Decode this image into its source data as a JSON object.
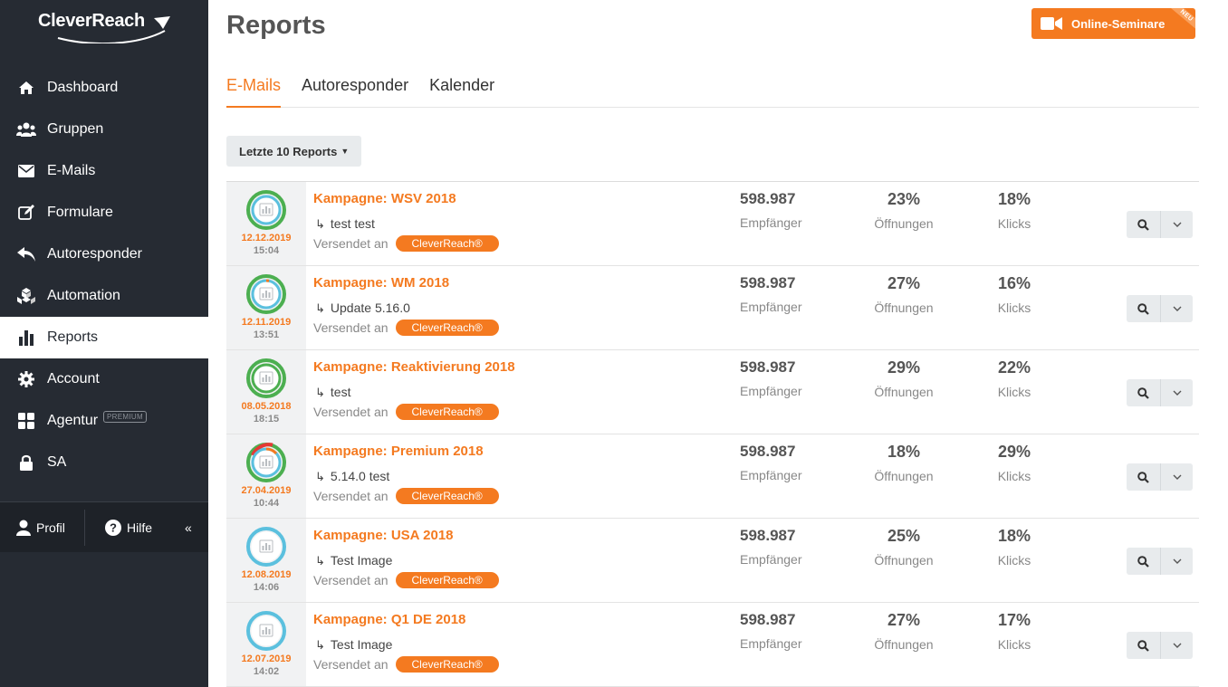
{
  "brand": {
    "name": "CleverReach"
  },
  "sidebar": {
    "items": [
      {
        "label": "Dashboard",
        "icon": "home-icon"
      },
      {
        "label": "Gruppen",
        "icon": "users-icon"
      },
      {
        "label": "E-Mails",
        "icon": "envelope-icon"
      },
      {
        "label": "Formulare",
        "icon": "edit-icon"
      },
      {
        "label": "Autoresponder",
        "icon": "reply-icon"
      },
      {
        "label": "Automation",
        "icon": "cubes-icon"
      },
      {
        "label": "Reports",
        "icon": "bar-chart-icon"
      },
      {
        "label": "Account",
        "icon": "gear-icon"
      },
      {
        "label": "Agentur",
        "icon": "grid-icon",
        "badge": "PREMIUM"
      },
      {
        "label": "SA",
        "icon": "lock-icon"
      }
    ],
    "bottom": {
      "profil": "Profil",
      "hilfe": "Hilfe",
      "collapse": "«"
    }
  },
  "header": {
    "title": "Reports",
    "seminar_label": "Online-Seminare",
    "seminar_badge": "NEU"
  },
  "tabs": [
    {
      "label": "E-Mails"
    },
    {
      "label": "Autoresponder"
    },
    {
      "label": "Kalender"
    }
  ],
  "filter": {
    "label": "Letzte 10 Reports"
  },
  "reports": [
    {
      "title": "Kampagne: WSV 2018",
      "subject": "test test",
      "sent_label": "Versendet an",
      "group": "CleverReach®",
      "date": "12.12.2019",
      "time": "15:04",
      "recipients": "598.987",
      "recipients_label": "Empfänger",
      "opens": "23%",
      "opens_label": "Öffnungen",
      "clicks": "18%",
      "clicks_label": "Klicks"
    },
    {
      "title": "Kampagne: WM 2018",
      "subject": "Update 5.16.0",
      "sent_label": "Versendet an",
      "group": "CleverReach®",
      "date": "12.11.2019",
      "time": "13:51",
      "recipients": "598.987",
      "recipients_label": "Empfänger",
      "opens": "27%",
      "opens_label": "Öffnungen",
      "clicks": "16%",
      "clicks_label": "Klicks"
    },
    {
      "title": "Kampagne: Reaktivierung 2018",
      "subject": "test",
      "sent_label": "Versendet an",
      "group": "CleverReach®",
      "date": "08.05.2018",
      "time": "18:15",
      "recipients": "598.987",
      "recipients_label": "Empfänger",
      "opens": "29%",
      "opens_label": "Öffnungen",
      "clicks": "22%",
      "clicks_label": "Klicks"
    },
    {
      "title": "Kampagne: Premium 2018",
      "subject": "5.14.0 test",
      "sent_label": "Versendet an",
      "group": "CleverReach®",
      "date": "27.04.2019",
      "time": "10:44",
      "recipients": "598.987",
      "recipients_label": "Empfänger",
      "opens": "18%",
      "opens_label": "Öffnungen",
      "clicks": "29%",
      "clicks_label": "Klicks"
    },
    {
      "title": "Kampagne: USA 2018",
      "subject": "Test Image",
      "sent_label": "Versendet an",
      "group": "CleverReach®",
      "date": "12.08.2019",
      "time": "14:06",
      "recipients": "598.987",
      "recipients_label": "Empfänger",
      "opens": "25%",
      "opens_label": "Öffnungen",
      "clicks": "18%",
      "clicks_label": "Klicks"
    },
    {
      "title": "Kampagne: Q1 DE 2018",
      "subject": "Test Image",
      "sent_label": "Versendet an",
      "group": "CleverReach®",
      "date": "12.07.2019",
      "time": "14:02",
      "recipients": "598.987",
      "recipients_label": "Empfänger",
      "opens": "27%",
      "opens_label": "Öffnungen",
      "clicks": "17%",
      "clicks_label": "Klicks"
    }
  ],
  "colors": {
    "accent": "#f47a20",
    "sidebar": "#262b33",
    "ring_green": "#4caf50",
    "ring_blue": "#5bc0de",
    "ring_red": "#e53935"
  }
}
